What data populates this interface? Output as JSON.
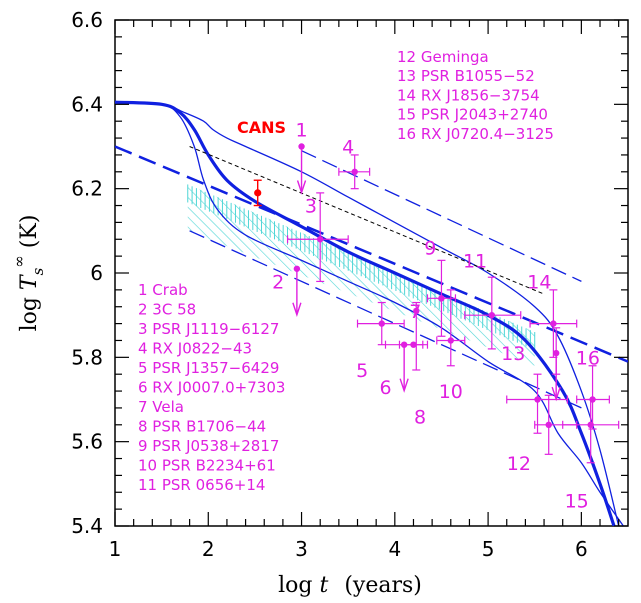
{
  "chart_data": {
    "type": "scatter",
    "xlabel": "log t   (years)",
    "ylabel": "log T_s^∞ (K)",
    "xlim": [
      1,
      6.5
    ],
    "ylim": [
      5.4,
      6.6
    ],
    "xticks": [
      "1",
      "2",
      "3",
      "4",
      "5",
      "6"
    ],
    "yticks": [
      "5.4",
      "5.6",
      "5.8",
      "6",
      "6.2",
      "6.4",
      "6.6"
    ],
    "cans_label": "CANS",
    "legend_left": [
      "1 Crab",
      "2 3C 58",
      "3 PSR J1119−6127",
      "4 RX J0822−43",
      "5 PSR J1357−6429",
      "6 RX J0007.0+7303",
      "7 Vela",
      "8 PSR B1706−44",
      "9 PSR J0538+2817",
      "10 PSR B2234+61",
      "11 PSR 0656+14"
    ],
    "legend_right": [
      "12 Geminga",
      "13 PSR B1055−52",
      "14 RX J1856−3754",
      "15 PSR J2043+2740",
      "16 RX J0720.4−3125"
    ],
    "cans_point": {
      "x": 2.53,
      "y": 6.19,
      "yerr": [
        6.16,
        6.22
      ]
    },
    "points": [
      {
        "id": "1",
        "x": 3.0,
        "y": 6.3,
        "upper_limit": true,
        "lx": 3.0,
        "ly": 6.34
      },
      {
        "id": "2",
        "x": 2.95,
        "y": 6.01,
        "upper_limit": true,
        "lx": 2.75,
        "ly": 5.98
      },
      {
        "id": "3",
        "x": 3.2,
        "y": 6.08,
        "xerr": [
          2.85,
          3.5
        ],
        "yerr": [
          5.98,
          6.19
        ],
        "lx": 3.1,
        "ly": 6.16
      },
      {
        "id": "4",
        "x": 3.57,
        "y": 6.24,
        "xerr": [
          3.4,
          3.73
        ],
        "yerr": [
          6.2,
          6.28
        ],
        "lx": 3.5,
        "ly": 6.3
      },
      {
        "id": "5",
        "x": 3.86,
        "y": 5.88,
        "xerr": [
          3.6,
          4.1
        ],
        "yerr": [
          5.83,
          5.93
        ],
        "lx": 3.65,
        "ly": 5.77
      },
      {
        "id": "6",
        "x": 4.1,
        "y": 5.83,
        "xerr": [
          3.9,
          4.3
        ],
        "upper_limit": true,
        "lx": 3.9,
        "ly": 5.73
      },
      {
        "id": "7",
        "x": 4.2,
        "y": 5.83,
        "xerr": [
          4.05,
          4.35
        ],
        "lx": 4.22,
        "ly": 5.91
      },
      {
        "id": "8",
        "x": 4.23,
        "y": 5.91,
        "yerr": [
          5.77,
          5.93
        ],
        "lx": 4.27,
        "ly": 5.66
      },
      {
        "id": "9",
        "x": 4.5,
        "y": 5.94,
        "xerr": [
          4.35,
          4.65
        ],
        "yerr": [
          5.85,
          6.03
        ],
        "lx": 4.38,
        "ly": 6.06
      },
      {
        "id": "10",
        "x": 4.6,
        "y": 5.84,
        "xerr": [
          4.45,
          4.75
        ],
        "yerr": [
          5.78,
          5.96
        ],
        "lx": 4.6,
        "ly": 5.72
      },
      {
        "id": "11",
        "x": 5.04,
        "y": 5.9,
        "xerr": [
          4.75,
          5.35
        ],
        "yerr": [
          5.82,
          5.99
        ],
        "lx": 4.86,
        "ly": 6.03
      },
      {
        "id": "12",
        "x": 5.53,
        "y": 5.7,
        "xerr": [
          5.2,
          5.85
        ],
        "yerr": [
          5.62,
          5.76
        ],
        "lx": 5.33,
        "ly": 5.55
      },
      {
        "id": "13",
        "x": 5.73,
        "y": 5.81,
        "yerr": [
          5.76,
          5.87
        ],
        "upper_limit": true,
        "lx": 5.27,
        "ly": 5.81
      },
      {
        "id": "14",
        "x": 5.7,
        "y": 5.88,
        "xerr": [
          5.45,
          5.95
        ],
        "yerr": [
          5.8,
          5.96
        ],
        "lx": 5.55,
        "ly": 5.98
      },
      {
        "id": "15",
        "x": 6.1,
        "y": 5.64,
        "xerr": [
          5.8,
          6.4
        ],
        "yerr": [
          5.55,
          5.7
        ],
        "lx": 5.95,
        "ly": 5.46
      },
      {
        "id": "16",
        "x": 6.12,
        "y": 5.7,
        "xerr": [
          5.95,
          6.3
        ],
        "yerr": [
          5.63,
          5.78
        ],
        "lx": 6.07,
        "ly": 5.8
      },
      {
        "id": "",
        "x": 5.65,
        "y": 5.64,
        "xerr": [
          5.5,
          5.95
        ],
        "yerr": [
          5.57,
          5.71
        ],
        "lx": 0,
        "ly": 0
      }
    ],
    "curves": [
      {
        "style": "thick",
        "x": [
          1.0,
          1.5,
          1.7,
          1.85,
          2.0,
          2.2,
          2.5,
          3.0,
          3.5,
          4.0,
          4.5,
          5.0,
          5.4,
          5.8,
          6.0,
          6.2,
          6.35
        ],
        "y": [
          6.405,
          6.4,
          6.38,
          6.34,
          6.28,
          6.22,
          6.17,
          6.11,
          6.05,
          6.0,
          5.95,
          5.9,
          5.84,
          5.72,
          5.62,
          5.5,
          5.4
        ]
      },
      {
        "style": "thin",
        "x": [
          1.0,
          1.5,
          1.7,
          1.85,
          1.95,
          2.1,
          2.4,
          3.0,
          3.5,
          4.0,
          4.5,
          5.0,
          5.5,
          5.75,
          6.0,
          6.2,
          6.45
        ],
        "y": [
          6.405,
          6.4,
          6.37,
          6.3,
          6.22,
          6.15,
          6.09,
          6.03,
          5.98,
          5.93,
          5.87,
          5.79,
          5.72,
          5.62,
          5.55,
          5.48,
          5.4
        ]
      },
      {
        "style": "thin",
        "x": [
          1.0,
          1.5,
          1.75,
          1.95,
          2.05,
          2.2,
          2.4,
          3.0,
          3.5,
          4.0,
          4.5,
          5.0,
          5.5,
          5.75,
          6.0,
          6.2,
          6.4
        ],
        "y": [
          6.405,
          6.4,
          6.38,
          6.36,
          6.34,
          6.32,
          6.3,
          6.24,
          6.18,
          6.12,
          6.06,
          6.0,
          5.92,
          5.85,
          5.72,
          5.58,
          5.4
        ]
      },
      {
        "style": "dash-thick",
        "x": [
          1.0,
          6.5
        ],
        "y": [
          6.3,
          5.79
        ]
      },
      {
        "style": "dash-thin",
        "x": [
          1.8,
          6.0
        ],
        "y": [
          6.1,
          5.68
        ]
      },
      {
        "style": "dash-thin",
        "x": [
          3.0,
          6.0
        ],
        "y": [
          6.29,
          5.98
        ]
      },
      {
        "style": "dash-black",
        "x": [
          1.8,
          5.6
        ],
        "y": [
          6.3,
          5.95
        ]
      }
    ],
    "band": {
      "upper": {
        "x": [
          1.78,
          5.5
        ],
        "y": [
          6.21,
          5.86
        ]
      },
      "lower": {
        "x": [
          1.78,
          5.5
        ],
        "y": [
          6.1,
          5.78
        ]
      }
    }
  }
}
